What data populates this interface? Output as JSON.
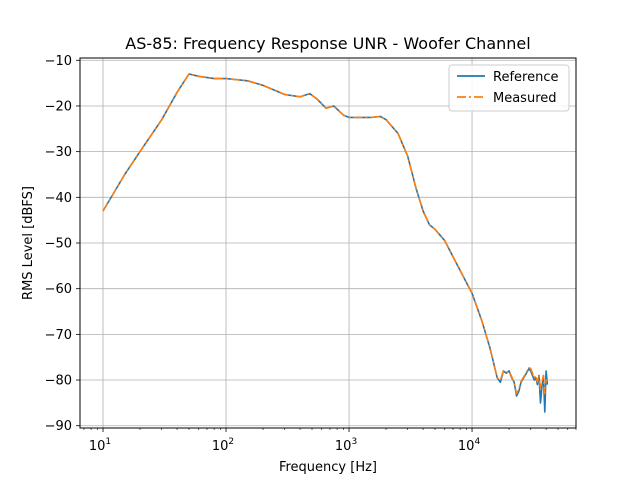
{
  "chart_data": {
    "type": "line",
    "title": "AS-85: Frequency Response UNR - Woofer Channel",
    "xlabel": "Frequency [Hz]",
    "ylabel": "RMS Level [dBFS]",
    "xscale": "log",
    "xlim": [
      6.5,
      70000
    ],
    "ylim": [
      -90.5,
      -9.5
    ],
    "xticks": [
      {
        "value": 10,
        "base": "10",
        "exp": "1"
      },
      {
        "value": 100,
        "base": "10",
        "exp": "2"
      },
      {
        "value": 1000,
        "base": "10",
        "exp": "3"
      },
      {
        "value": 10000,
        "base": "10",
        "exp": "4"
      }
    ],
    "yticks": [
      -10,
      -20,
      -30,
      -40,
      -50,
      -60,
      -70,
      -80,
      -90
    ],
    "grid": true,
    "legend_position": "top-right",
    "series": [
      {
        "name": "Reference",
        "color": "#1f77b4",
        "style": "solid",
        "x": [
          10,
          15,
          20,
          30,
          40,
          50,
          60,
          80,
          100,
          150,
          200,
          300,
          400,
          480,
          550,
          650,
          750,
          900,
          1000,
          1200,
          1500,
          1800,
          2000,
          2500,
          3000,
          3500,
          4000,
          4500,
          5000,
          6000,
          7000,
          8000,
          10000,
          12000,
          14000,
          16000,
          17000,
          18000,
          19000,
          20000,
          21000,
          22000,
          23000,
          24000,
          25000,
          27000,
          29000,
          30000,
          31000,
          32000,
          33000,
          34000,
          35000,
          36000,
          37000,
          38000,
          39000,
          40000,
          41000
        ],
        "y": [
          -43,
          -35,
          -30,
          -23,
          -17,
          -13,
          -13.5,
          -14,
          -14,
          -14.5,
          -15.5,
          -17.5,
          -18,
          -17.3,
          -18.5,
          -20.5,
          -20,
          -22,
          -22.5,
          -22.5,
          -22.5,
          -22.3,
          -23,
          -26,
          -31,
          -38,
          -43,
          -46,
          -47,
          -49.5,
          -53,
          -56,
          -61,
          -67,
          -73,
          -79.5,
          -80.5,
          -78,
          -78.5,
          -78,
          -79.5,
          -80.5,
          -83.5,
          -82.5,
          -80.5,
          -79,
          -77.5,
          -78,
          -79,
          -80,
          -79.5,
          -81,
          -79,
          -85,
          -81.5,
          -79,
          -87,
          -78,
          -81
        ]
      },
      {
        "name": "Measured",
        "color": "#ff7f0e",
        "style": "dashdot",
        "x": [
          10,
          15,
          20,
          30,
          40,
          50,
          60,
          80,
          100,
          150,
          200,
          300,
          400,
          480,
          550,
          650,
          750,
          900,
          1000,
          1200,
          1500,
          1800,
          2000,
          2500,
          3000,
          3500,
          4000,
          4500,
          5000,
          6000,
          7000,
          8000,
          10000,
          12000,
          14000,
          16000,
          17000,
          18000,
          19000,
          20000,
          21000,
          22000,
          23000,
          24000,
          25000,
          27000,
          29000,
          30000,
          31000,
          32000,
          33000,
          34000,
          35000,
          36000,
          37000,
          38000,
          39000,
          40000,
          41000
        ],
        "y": [
          -43,
          -35,
          -30,
          -23,
          -17,
          -13,
          -13.5,
          -14,
          -14,
          -14.5,
          -15.5,
          -17.5,
          -18,
          -17.3,
          -18.5,
          -20.5,
          -20,
          -22,
          -22.5,
          -22.5,
          -22.5,
          -22.3,
          -23,
          -26,
          -31,
          -38,
          -43,
          -46,
          -47,
          -49.5,
          -53,
          -56,
          -61,
          -67,
          -73,
          -79.5,
          -80,
          -78,
          -78.3,
          -78,
          -79.3,
          -80.5,
          -83,
          -82,
          -80.3,
          -78.8,
          -77.3,
          -77.5,
          -78.5,
          -79.5,
          -79,
          -80.5,
          -79,
          -82,
          -80.5,
          -79,
          -83,
          -80,
          -80
        ]
      }
    ]
  }
}
